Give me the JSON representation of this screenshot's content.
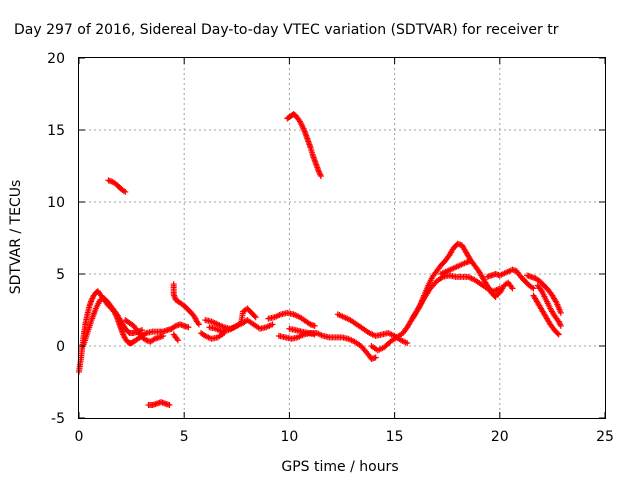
{
  "chart_data": {
    "type": "scatter",
    "title": "Day 297 of 2016, Sidereal Day-to-day VTEC variation (SDTVAR) for receiver tr",
    "xlabel": "GPS time / hours",
    "ylabel": "SDTVAR / TECUs",
    "xlim": [
      0,
      25
    ],
    "ylim": [
      -5,
      20
    ],
    "x_ticks": [
      "0",
      "5",
      "10",
      "15",
      "20",
      "25"
    ],
    "y_ticks": [
      "-5",
      "0",
      "5",
      "10",
      "15",
      "20"
    ],
    "grid": true,
    "marker": "plus",
    "series": [
      {
        "color": "#ff0000",
        "segments": [
          [
            [
              0.0,
              -1.8
            ],
            [
              0.1,
              -0.8
            ],
            [
              0.2,
              0.5
            ],
            [
              0.3,
              1.5
            ],
            [
              0.4,
              2.2
            ],
            [
              0.5,
              2.8
            ],
            [
              0.6,
              3.2
            ],
            [
              0.7,
              3.5
            ],
            [
              0.8,
              3.7
            ],
            [
              0.9,
              3.8
            ],
            [
              1.0,
              3.6
            ],
            [
              1.1,
              3.4
            ],
            [
              1.2,
              3.2
            ],
            [
              1.3,
              3.0
            ],
            [
              1.4,
              2.8
            ],
            [
              1.5,
              2.7
            ],
            [
              1.6,
              2.5
            ],
            [
              1.7,
              2.3
            ],
            [
              1.8,
              2.0
            ],
            [
              1.9,
              1.6
            ],
            [
              2.0,
              1.2
            ],
            [
              2.1,
              0.8
            ],
            [
              2.2,
              0.5
            ],
            [
              2.3,
              0.3
            ],
            [
              2.4,
              0.2
            ],
            [
              2.5,
              0.2
            ],
            [
              2.6,
              0.3
            ],
            [
              2.8,
              0.5
            ],
            [
              3.0,
              0.7
            ],
            [
              3.2,
              0.9
            ],
            [
              3.5,
              1.0
            ],
            [
              3.8,
              1.0
            ],
            [
              4.0,
              1.0
            ],
            [
              4.2,
              1.1
            ],
            [
              4.4,
              1.2
            ]
          ],
          [
            [
              0.2,
              0.0
            ],
            [
              0.4,
              0.9
            ],
            [
              0.6,
              1.8
            ],
            [
              0.8,
              2.6
            ],
            [
              1.0,
              3.2
            ],
            [
              1.2,
              3.3
            ],
            [
              1.4,
              3.0
            ],
            [
              1.6,
              2.6
            ],
            [
              1.8,
              2.2
            ],
            [
              2.0,
              1.7
            ],
            [
              2.2,
              1.2
            ],
            [
              2.4,
              0.9
            ],
            [
              2.6,
              0.9
            ],
            [
              2.8,
              1.0
            ],
            [
              3.0,
              1.1
            ]
          ],
          [
            [
              2.2,
              1.8
            ],
            [
              2.4,
              1.6
            ],
            [
              2.6,
              1.4
            ],
            [
              2.8,
              1.0
            ],
            [
              3.0,
              0.6
            ],
            [
              3.2,
              0.4
            ],
            [
              3.4,
              0.3
            ],
            [
              3.6,
              0.5
            ],
            [
              3.8,
              0.6
            ],
            [
              4.0,
              0.7
            ]
          ],
          [
            [
              4.5,
              4.3
            ],
            [
              4.5,
              3.6
            ],
            [
              4.6,
              3.2
            ],
            [
              4.8,
              3.0
            ],
            [
              5.0,
              2.8
            ],
            [
              5.2,
              2.5
            ],
            [
              5.4,
              2.2
            ],
            [
              5.5,
              2.0
            ],
            [
              5.6,
              1.7
            ],
            [
              5.7,
              1.5
            ]
          ],
          [
            [
              4.4,
              1.2
            ],
            [
              4.6,
              1.4
            ],
            [
              4.8,
              1.5
            ],
            [
              5.0,
              1.4
            ],
            [
              5.2,
              1.3
            ]
          ],
          [
            [
              4.5,
              0.8
            ],
            [
              4.6,
              0.6
            ],
            [
              4.7,
              0.4
            ]
          ],
          [
            [
              6.0,
              1.8
            ],
            [
              6.3,
              1.7
            ],
            [
              6.6,
              1.5
            ],
            [
              6.9,
              1.3
            ],
            [
              7.2,
              1.2
            ],
            [
              7.5,
              1.4
            ],
            [
              7.8,
              1.6
            ],
            [
              8.0,
              1.8
            ],
            [
              8.3,
              1.5
            ],
            [
              8.6,
              1.2
            ],
            [
              8.9,
              1.3
            ],
            [
              9.2,
              1.5
            ]
          ],
          [
            [
              6.2,
              1.3
            ],
            [
              6.5,
              1.2
            ],
            [
              6.8,
              1.0
            ],
            [
              7.1,
              1.1
            ],
            [
              7.4,
              1.3
            ],
            [
              7.7,
              1.6
            ],
            [
              7.8,
              2.4
            ],
            [
              8.0,
              2.6
            ],
            [
              8.2,
              2.3
            ],
            [
              8.4,
              2.0
            ]
          ],
          [
            [
              5.8,
              0.9
            ],
            [
              6.0,
              0.7
            ],
            [
              6.3,
              0.5
            ],
            [
              6.6,
              0.6
            ],
            [
              6.9,
              0.9
            ]
          ],
          [
            [
              9.0,
              1.9
            ],
            [
              9.3,
              2.0
            ],
            [
              9.6,
              2.2
            ],
            [
              9.9,
              2.3
            ],
            [
              10.2,
              2.2
            ],
            [
              10.5,
              2.0
            ],
            [
              10.8,
              1.7
            ],
            [
              11.0,
              1.5
            ],
            [
              11.2,
              1.4
            ]
          ],
          [
            [
              9.5,
              0.7
            ],
            [
              9.8,
              0.6
            ],
            [
              10.1,
              0.5
            ],
            [
              10.4,
              0.6
            ],
            [
              10.7,
              0.8
            ],
            [
              11.0,
              0.9
            ],
            [
              11.3,
              0.9
            ],
            [
              11.6,
              0.7
            ],
            [
              11.9,
              0.6
            ],
            [
              12.2,
              0.6
            ],
            [
              12.5,
              0.6
            ],
            [
              12.8,
              0.5
            ],
            [
              13.1,
              0.3
            ],
            [
              13.4,
              0.0
            ],
            [
              13.7,
              -0.5
            ],
            [
              13.9,
              -0.9
            ],
            [
              14.1,
              -0.8
            ]
          ],
          [
            [
              10.0,
              1.2
            ],
            [
              10.3,
              1.1
            ],
            [
              10.6,
              1.0
            ],
            [
              10.9,
              0.9
            ],
            [
              11.2,
              0.8
            ]
          ],
          [
            [
              12.3,
              2.2
            ],
            [
              12.6,
              2.0
            ],
            [
              12.9,
              1.8
            ],
            [
              13.2,
              1.5
            ],
            [
              13.5,
              1.2
            ],
            [
              13.8,
              0.9
            ],
            [
              14.1,
              0.7
            ],
            [
              14.4,
              0.8
            ],
            [
              14.7,
              0.9
            ],
            [
              15.0,
              0.7
            ],
            [
              15.3,
              0.4
            ],
            [
              15.6,
              0.2
            ]
          ],
          [
            [
              13.9,
              0.0
            ],
            [
              14.2,
              -0.3
            ],
            [
              14.5,
              -0.1
            ],
            [
              14.8,
              0.3
            ],
            [
              15.1,
              0.6
            ],
            [
              15.4,
              0.9
            ],
            [
              15.6,
              1.3
            ],
            [
              15.8,
              1.8
            ],
            [
              16.0,
              2.3
            ],
            [
              16.2,
              2.8
            ],
            [
              16.4,
              3.5
            ],
            [
              16.6,
              4.2
            ],
            [
              16.8,
              4.8
            ],
            [
              17.0,
              5.2
            ],
            [
              17.2,
              5.6
            ],
            [
              17.4,
              5.9
            ],
            [
              17.6,
              6.3
            ],
            [
              17.8,
              6.8
            ],
            [
              18.0,
              7.1
            ],
            [
              18.2,
              7.0
            ],
            [
              18.4,
              6.5
            ],
            [
              18.6,
              6.0
            ],
            [
              18.8,
              5.6
            ],
            [
              19.0,
              5.2
            ],
            [
              19.2,
              4.7
            ],
            [
              19.4,
              4.2
            ],
            [
              19.6,
              3.7
            ],
            [
              19.8,
              3.4
            ]
          ],
          [
            [
              15.8,
              1.8
            ],
            [
              16.1,
              2.5
            ],
            [
              16.4,
              3.3
            ],
            [
              16.7,
              4.0
            ],
            [
              17.0,
              4.5
            ],
            [
              17.3,
              4.8
            ],
            [
              17.6,
              4.9
            ],
            [
              17.9,
              4.8
            ],
            [
              18.2,
              4.8
            ],
            [
              18.5,
              4.8
            ],
            [
              18.8,
              4.6
            ],
            [
              19.1,
              4.3
            ],
            [
              19.4,
              4.0
            ],
            [
              19.7,
              3.8
            ],
            [
              20.0,
              4.0
            ]
          ],
          [
            [
              17.2,
              5.0
            ],
            [
              17.5,
              5.2
            ],
            [
              17.8,
              5.4
            ],
            [
              18.1,
              5.6
            ],
            [
              18.4,
              5.8
            ],
            [
              18.6,
              5.9
            ]
          ],
          [
            [
              19.4,
              4.8
            ],
            [
              19.6,
              4.9
            ],
            [
              19.8,
              5.0
            ],
            [
              20.0,
              4.9
            ],
            [
              20.3,
              5.1
            ],
            [
              20.6,
              5.3
            ],
            [
              20.8,
              5.2
            ],
            [
              21.0,
              4.8
            ],
            [
              21.2,
              4.5
            ],
            [
              21.4,
              4.2
            ],
            [
              21.6,
              4.0
            ]
          ],
          [
            [
              19.8,
              3.5
            ],
            [
              20.0,
              3.7
            ],
            [
              20.2,
              4.2
            ],
            [
              20.4,
              4.4
            ],
            [
              20.6,
              4.0
            ]
          ],
          [
            [
              21.3,
              4.9
            ],
            [
              21.5,
              4.8
            ],
            [
              21.7,
              4.7
            ],
            [
              21.9,
              4.5
            ],
            [
              22.1,
              4.2
            ],
            [
              22.3,
              3.9
            ],
            [
              22.5,
              3.5
            ],
            [
              22.7,
              3.0
            ],
            [
              22.9,
              2.3
            ]
          ],
          [
            [
              21.6,
              3.5
            ],
            [
              21.8,
              3.0
            ],
            [
              22.0,
              2.5
            ],
            [
              22.2,
              2.0
            ],
            [
              22.4,
              1.5
            ],
            [
              22.6,
              1.1
            ],
            [
              22.8,
              0.8
            ]
          ],
          [
            [
              21.8,
              4.2
            ],
            [
              22.0,
              3.8
            ],
            [
              22.2,
              3.2
            ],
            [
              22.4,
              2.6
            ],
            [
              22.6,
              2.1
            ],
            [
              22.8,
              1.7
            ],
            [
              22.9,
              1.4
            ]
          ],
          [
            [
              1.4,
              11.5
            ],
            [
              1.6,
              11.4
            ],
            [
              1.8,
              11.2
            ],
            [
              2.0,
              10.9
            ],
            [
              2.2,
              10.7
            ]
          ],
          [
            [
              3.3,
              -4.1
            ],
            [
              3.5,
              -4.1
            ],
            [
              3.7,
              -4.0
            ],
            [
              3.9,
              -3.9
            ],
            [
              4.1,
              -4.0
            ],
            [
              4.3,
              -4.1
            ]
          ],
          [
            [
              9.9,
              15.8
            ],
            [
              10.0,
              15.9
            ],
            [
              10.1,
              16.0
            ],
            [
              10.2,
              16.1
            ],
            [
              10.3,
              16.0
            ],
            [
              10.4,
              15.8
            ],
            [
              10.5,
              15.6
            ],
            [
              10.6,
              15.3
            ],
            [
              10.7,
              15.0
            ],
            [
              10.8,
              14.6
            ],
            [
              10.9,
              14.2
            ],
            [
              11.0,
              13.8
            ],
            [
              11.1,
              13.3
            ],
            [
              11.2,
              12.9
            ],
            [
              11.3,
              12.5
            ],
            [
              11.4,
              12.1
            ],
            [
              11.5,
              11.8
            ]
          ]
        ]
      }
    ]
  }
}
